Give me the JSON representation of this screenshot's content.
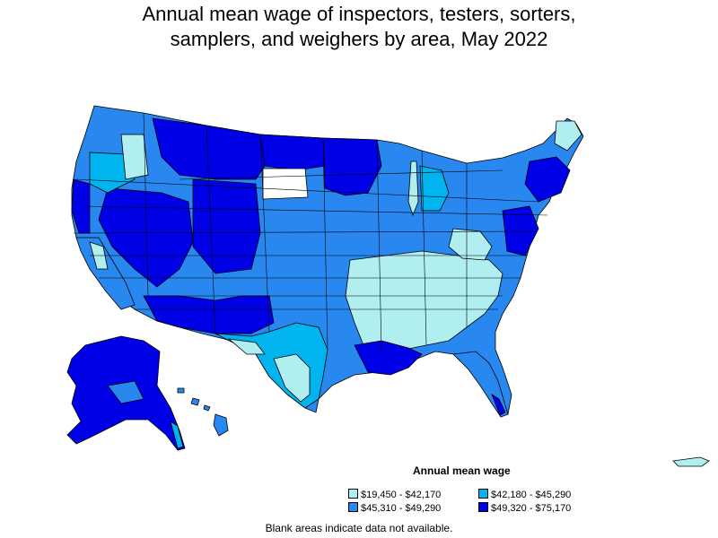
{
  "title": {
    "line1": "Annual mean wage of inspectors, testers, sorters,",
    "line2": "samplers, and weighers by area, May 2022"
  },
  "legend": {
    "title": "Annual mean wage",
    "items": [
      {
        "label": "$19,450 - $42,170",
        "color": "#b0eef0"
      },
      {
        "label": "$42,180 - $45,290",
        "color": "#00b4f0"
      },
      {
        "label": "$45,310 - $49,290",
        "color": "#2888f0"
      },
      {
        "label": "$49,320 - $75,170",
        "color": "#0000e6"
      }
    ]
  },
  "note": "Blank areas indicate data not available.",
  "colors": {
    "tier1": "#b0eef0",
    "tier2": "#00b4f0",
    "tier3": "#2888f0",
    "tier4": "#0000e6",
    "border": "#000000",
    "no_data": "#ffffff"
  }
}
